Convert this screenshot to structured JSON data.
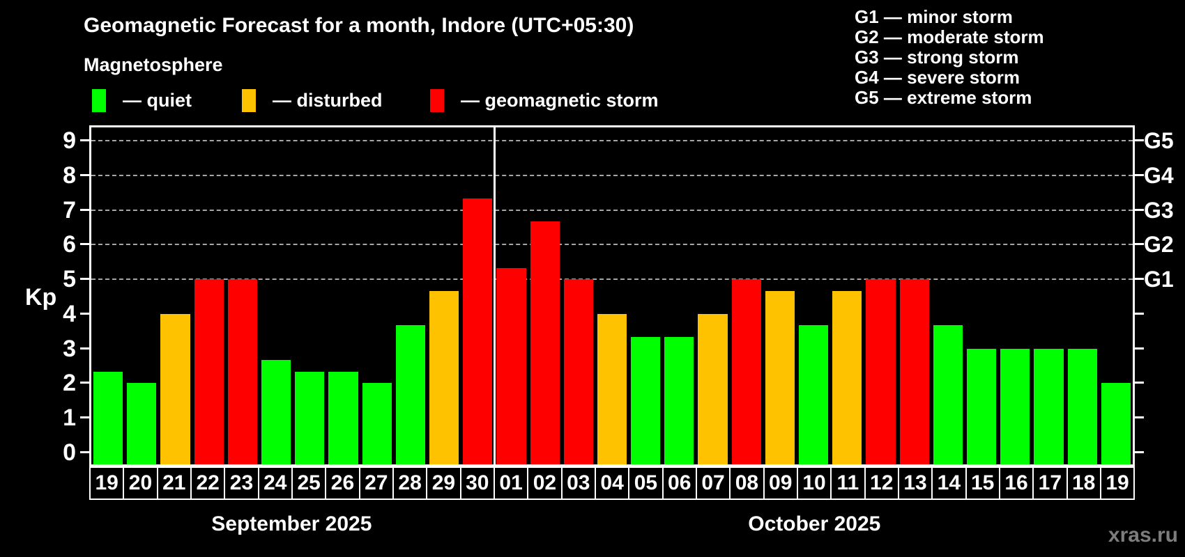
{
  "title": "Geomagnetic Forecast for a month, Indore (UTC+05:30)",
  "subtitle": "Magnetosphere",
  "legend": {
    "items": [
      {
        "key": "quiet",
        "label": "— quiet",
        "color": "#00ff00"
      },
      {
        "key": "disturbed",
        "label": "— disturbed",
        "color": "#ffc200"
      },
      {
        "key": "storm",
        "label": "— geomagnetic storm",
        "color": "#ff0000"
      }
    ]
  },
  "g_legend": {
    "lines": [
      "G1 — minor storm",
      "G2 — moderate storm",
      "G3 — strong storm",
      "G4 — severe storm",
      "G5 — extreme storm"
    ]
  },
  "months": [
    {
      "label": "September 2025",
      "day_count": 12
    },
    {
      "label": "October 2025",
      "day_count": 19
    }
  ],
  "watermark": "xras.ru",
  "chart_data": {
    "type": "bar",
    "title": "Geomagnetic Forecast for a month, Indore (UTC+05:30)",
    "xlabel": "",
    "ylabel": "Kp",
    "ylim": [
      0,
      9
    ],
    "y_ticks": [
      0,
      1,
      2,
      3,
      4,
      5,
      6,
      7,
      8,
      9
    ],
    "gridlines_at": [
      5,
      6,
      7,
      8,
      9
    ],
    "grid": "dashed, Kp 5-9 only",
    "legend_position": "top",
    "right_axis_labels": [
      {
        "kp": 5,
        "label": "G1"
      },
      {
        "kp": 6,
        "label": "G2"
      },
      {
        "kp": 7,
        "label": "G3"
      },
      {
        "kp": 8,
        "label": "G4"
      },
      {
        "kp": 9,
        "label": "G5"
      }
    ],
    "status_colors": {
      "quiet": "#00ff00",
      "disturbed": "#ffc200",
      "storm": "#ff0000"
    },
    "month_separator_after_index": 11,
    "days": [
      {
        "label": "19",
        "month": "September 2025",
        "kp": 2.33,
        "status": "quiet"
      },
      {
        "label": "20",
        "month": "September 2025",
        "kp": 2.0,
        "status": "quiet"
      },
      {
        "label": "21",
        "month": "September 2025",
        "kp": 4.0,
        "status": "disturbed"
      },
      {
        "label": "22",
        "month": "September 2025",
        "kp": 5.0,
        "status": "storm"
      },
      {
        "label": "23",
        "month": "September 2025",
        "kp": 5.0,
        "status": "storm"
      },
      {
        "label": "24",
        "month": "September 2025",
        "kp": 2.67,
        "status": "quiet"
      },
      {
        "label": "25",
        "month": "September 2025",
        "kp": 2.33,
        "status": "quiet"
      },
      {
        "label": "26",
        "month": "September 2025",
        "kp": 2.33,
        "status": "quiet"
      },
      {
        "label": "27",
        "month": "September 2025",
        "kp": 2.0,
        "status": "quiet"
      },
      {
        "label": "28",
        "month": "September 2025",
        "kp": 3.67,
        "status": "quiet"
      },
      {
        "label": "29",
        "month": "September 2025",
        "kp": 4.67,
        "status": "disturbed"
      },
      {
        "label": "30",
        "month": "September 2025",
        "kp": 7.33,
        "status": "storm"
      },
      {
        "label": "01",
        "month": "October 2025",
        "kp": 5.33,
        "status": "storm"
      },
      {
        "label": "02",
        "month": "October 2025",
        "kp": 6.67,
        "status": "storm"
      },
      {
        "label": "03",
        "month": "October 2025",
        "kp": 5.0,
        "status": "storm"
      },
      {
        "label": "04",
        "month": "October 2025",
        "kp": 4.0,
        "status": "disturbed"
      },
      {
        "label": "05",
        "month": "October 2025",
        "kp": 3.33,
        "status": "quiet"
      },
      {
        "label": "06",
        "month": "October 2025",
        "kp": 3.33,
        "status": "quiet"
      },
      {
        "label": "07",
        "month": "October 2025",
        "kp": 4.0,
        "status": "disturbed"
      },
      {
        "label": "08",
        "month": "October 2025",
        "kp": 5.0,
        "status": "storm"
      },
      {
        "label": "09",
        "month": "October 2025",
        "kp": 4.67,
        "status": "disturbed"
      },
      {
        "label": "10",
        "month": "October 2025",
        "kp": 3.67,
        "status": "quiet"
      },
      {
        "label": "11",
        "month": "October 2025",
        "kp": 4.67,
        "status": "disturbed"
      },
      {
        "label": "12",
        "month": "October 2025",
        "kp": 5.0,
        "status": "storm"
      },
      {
        "label": "13",
        "month": "October 2025",
        "kp": 5.0,
        "status": "storm"
      },
      {
        "label": "14",
        "month": "October 2025",
        "kp": 3.67,
        "status": "quiet"
      },
      {
        "label": "15",
        "month": "October 2025",
        "kp": 3.0,
        "status": "quiet"
      },
      {
        "label": "16",
        "month": "October 2025",
        "kp": 3.0,
        "status": "quiet"
      },
      {
        "label": "17",
        "month": "October 2025",
        "kp": 3.0,
        "status": "quiet"
      },
      {
        "label": "18",
        "month": "October 2025",
        "kp": 3.0,
        "status": "quiet"
      },
      {
        "label": "19",
        "month": "October 2025",
        "kp": 2.0,
        "status": "quiet"
      }
    ]
  }
}
